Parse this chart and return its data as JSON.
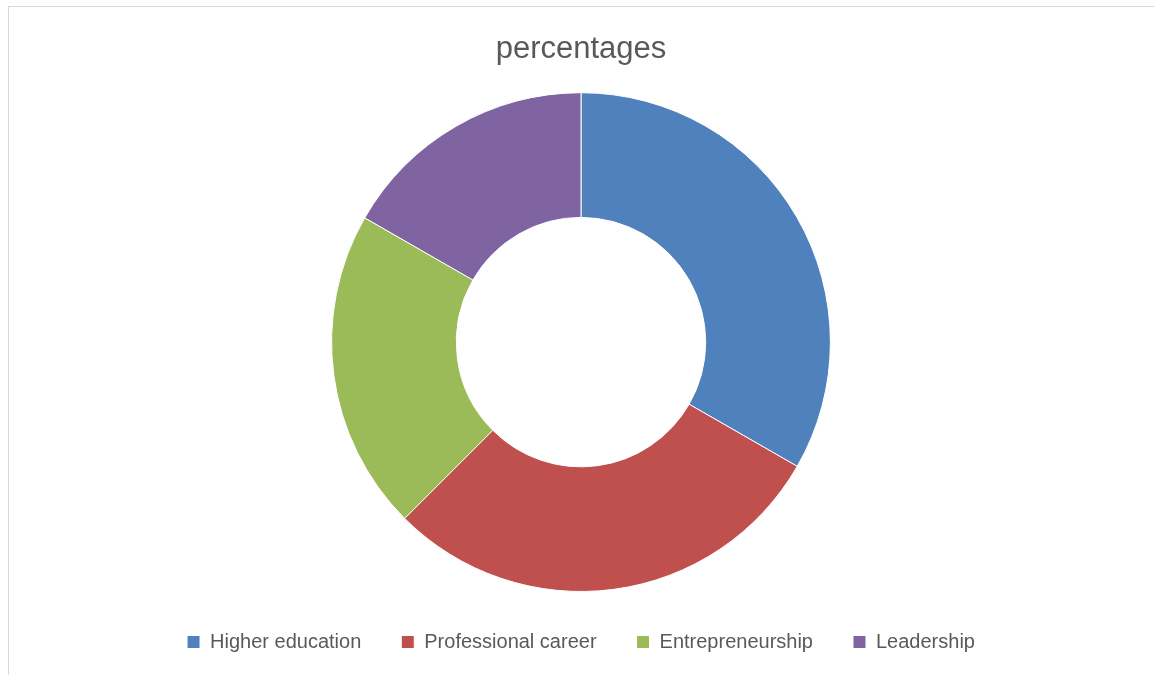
{
  "chart_data": {
    "type": "donut",
    "title": "percentages",
    "categories": [
      "Higher education",
      "Professional career",
      "Entrepreneurship",
      "Leadership"
    ],
    "values": [
      33.3,
      29.2,
      20.8,
      16.7
    ],
    "colors": [
      "#4f81bd",
      "#c0504d",
      "#9bbb59",
      "#8064a2"
    ],
    "legend": "bottom"
  }
}
